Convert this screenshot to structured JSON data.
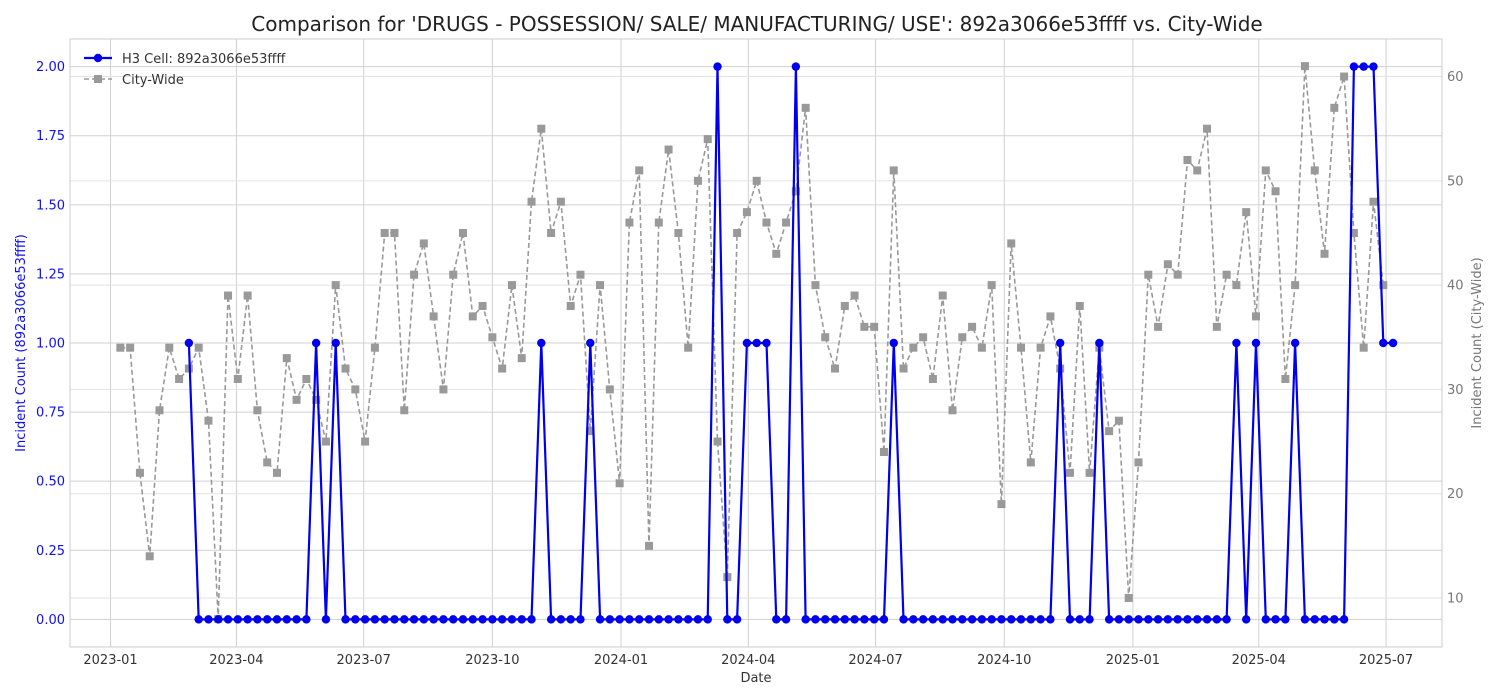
{
  "chart_data": {
    "type": "line",
    "title": "Comparison for 'DRUGS - POSSESSION/ SALE/ MANUFACTURING/ USE': 892a3066e53ffff vs. City-Wide",
    "xlabel": "Date",
    "ylabel_left": "Incident Count (892a3066e53ffff)",
    "ylabel_right": "Incident Count (City-Wide)",
    "ylim_left": [
      -0.1,
      2.1
    ],
    "ylim_right": [
      5.3,
      63.6
    ],
    "xlim": [
      "2022-12-03",
      "2025-08-10"
    ],
    "x_ticks": [
      "2023-01",
      "2023-04",
      "2023-07",
      "2023-10",
      "2024-01",
      "2024-04",
      "2024-07",
      "2024-10",
      "2025-01",
      "2025-04",
      "2025-07"
    ],
    "y_ticks_left": [
      "0.00",
      "0.25",
      "0.50",
      "0.75",
      "1.00",
      "1.25",
      "1.50",
      "1.75",
      "2.00"
    ],
    "y_ticks_right": [
      "10",
      "20",
      "30",
      "40",
      "50",
      "60"
    ],
    "grid": true,
    "legend_position": "top-left",
    "legend": [
      "H3 Cell: 892a3066e53ffff",
      "City-Wide"
    ],
    "series": [
      {
        "name": "H3 Cell: 892a3066e53ffff",
        "axis": "left",
        "color": "#0000ee",
        "points": [
          [
            "2023-02-26",
            1
          ],
          [
            "2023-03-05",
            0
          ],
          [
            "2023-03-12",
            0
          ],
          [
            "2023-03-19",
            0
          ],
          [
            "2023-03-26",
            0
          ],
          [
            "2023-04-02",
            0
          ],
          [
            "2023-04-09",
            0
          ],
          [
            "2023-04-16",
            0
          ],
          [
            "2023-04-23",
            0
          ],
          [
            "2023-04-30",
            0
          ],
          [
            "2023-05-07",
            0
          ],
          [
            "2023-05-14",
            0
          ],
          [
            "2023-05-21",
            0
          ],
          [
            "2023-05-28",
            1
          ],
          [
            "2023-06-04",
            0
          ],
          [
            "2023-06-11",
            1
          ],
          [
            "2023-06-18",
            0
          ],
          [
            "2023-06-25",
            0
          ],
          [
            "2023-07-02",
            0
          ],
          [
            "2023-07-09",
            0
          ],
          [
            "2023-07-16",
            0
          ],
          [
            "2023-07-23",
            0
          ],
          [
            "2023-07-30",
            0
          ],
          [
            "2023-08-06",
            0
          ],
          [
            "2023-08-13",
            0
          ],
          [
            "2023-08-20",
            0
          ],
          [
            "2023-08-27",
            0
          ],
          [
            "2023-09-03",
            0
          ],
          [
            "2023-09-10",
            0
          ],
          [
            "2023-09-17",
            0
          ],
          [
            "2023-09-24",
            0
          ],
          [
            "2023-10-01",
            0
          ],
          [
            "2023-10-08",
            0
          ],
          [
            "2023-10-15",
            0
          ],
          [
            "2023-10-22",
            0
          ],
          [
            "2023-10-29",
            0
          ],
          [
            "2023-11-05",
            1
          ],
          [
            "2023-11-12",
            0
          ],
          [
            "2023-11-19",
            0
          ],
          [
            "2023-11-26",
            0
          ],
          [
            "2023-12-03",
            0
          ],
          [
            "2023-12-10",
            1
          ],
          [
            "2023-12-17",
            0
          ],
          [
            "2023-12-24",
            0
          ],
          [
            "2023-12-31",
            0
          ],
          [
            "2024-01-07",
            0
          ],
          [
            "2024-01-14",
            0
          ],
          [
            "2024-01-21",
            0
          ],
          [
            "2024-01-28",
            0
          ],
          [
            "2024-02-04",
            0
          ],
          [
            "2024-02-11",
            0
          ],
          [
            "2024-02-18",
            0
          ],
          [
            "2024-02-25",
            0
          ],
          [
            "2024-03-03",
            0
          ],
          [
            "2024-03-10",
            2
          ],
          [
            "2024-03-17",
            0
          ],
          [
            "2024-03-24",
            0
          ],
          [
            "2024-03-31",
            1
          ],
          [
            "2024-04-07",
            1
          ],
          [
            "2024-04-14",
            1
          ],
          [
            "2024-04-21",
            0
          ],
          [
            "2024-04-28",
            0
          ],
          [
            "2024-05-05",
            2
          ],
          [
            "2024-05-12",
            0
          ],
          [
            "2024-05-19",
            0
          ],
          [
            "2024-05-26",
            0
          ],
          [
            "2024-06-02",
            0
          ],
          [
            "2024-06-09",
            0
          ],
          [
            "2024-06-16",
            0
          ],
          [
            "2024-06-23",
            0
          ],
          [
            "2024-06-30",
            0
          ],
          [
            "2024-07-07",
            0
          ],
          [
            "2024-07-14",
            1
          ],
          [
            "2024-07-21",
            0
          ],
          [
            "2024-07-28",
            0
          ],
          [
            "2024-08-04",
            0
          ],
          [
            "2024-08-11",
            0
          ],
          [
            "2024-08-18",
            0
          ],
          [
            "2024-08-25",
            0
          ],
          [
            "2024-09-01",
            0
          ],
          [
            "2024-09-08",
            0
          ],
          [
            "2024-09-15",
            0
          ],
          [
            "2024-09-22",
            0
          ],
          [
            "2024-09-29",
            0
          ],
          [
            "2024-10-06",
            0
          ],
          [
            "2024-10-13",
            0
          ],
          [
            "2024-10-20",
            0
          ],
          [
            "2024-10-27",
            0
          ],
          [
            "2024-11-03",
            0
          ],
          [
            "2024-11-10",
            1
          ],
          [
            "2024-11-17",
            0
          ],
          [
            "2024-11-24",
            0
          ],
          [
            "2024-12-01",
            0
          ],
          [
            "2024-12-08",
            1
          ],
          [
            "2024-12-15",
            0
          ],
          [
            "2024-12-22",
            0
          ],
          [
            "2024-12-29",
            0
          ],
          [
            "2025-01-05",
            0
          ],
          [
            "2025-01-12",
            0
          ],
          [
            "2025-01-19",
            0
          ],
          [
            "2025-01-26",
            0
          ],
          [
            "2025-02-02",
            0
          ],
          [
            "2025-02-09",
            0
          ],
          [
            "2025-02-16",
            0
          ],
          [
            "2025-02-23",
            0
          ],
          [
            "2025-03-02",
            0
          ],
          [
            "2025-03-09",
            0
          ],
          [
            "2025-03-16",
            1
          ],
          [
            "2025-03-23",
            0
          ],
          [
            "2025-03-30",
            1
          ],
          [
            "2025-04-06",
            0
          ],
          [
            "2025-04-13",
            0
          ],
          [
            "2025-04-20",
            0
          ],
          [
            "2025-04-27",
            1
          ],
          [
            "2025-05-04",
            0
          ],
          [
            "2025-05-11",
            0
          ],
          [
            "2025-05-18",
            0
          ],
          [
            "2025-05-25",
            0
          ],
          [
            "2025-06-01",
            0
          ],
          [
            "2025-06-08",
            2
          ],
          [
            "2025-06-15",
            2
          ],
          [
            "2025-06-22",
            2
          ],
          [
            "2025-06-29",
            1
          ],
          [
            "2025-07-06",
            1
          ]
        ]
      },
      {
        "name": "City-Wide",
        "axis": "right",
        "color": "#999999",
        "points": [
          [
            "2023-01-08",
            34
          ],
          [
            "2023-01-15",
            34
          ],
          [
            "2023-01-22",
            22
          ],
          [
            "2023-01-29",
            14
          ],
          [
            "2023-02-05",
            28
          ],
          [
            "2023-02-12",
            34
          ],
          [
            "2023-02-19",
            31
          ],
          [
            "2023-02-26",
            32
          ],
          [
            "2023-03-05",
            34
          ],
          [
            "2023-03-12",
            27
          ],
          [
            "2023-03-19",
            8
          ],
          [
            "2023-03-26",
            39
          ],
          [
            "2023-04-02",
            31
          ],
          [
            "2023-04-09",
            39
          ],
          [
            "2023-04-16",
            28
          ],
          [
            "2023-04-23",
            23
          ],
          [
            "2023-04-30",
            22
          ],
          [
            "2023-05-07",
            33
          ],
          [
            "2023-05-14",
            29
          ],
          [
            "2023-05-21",
            31
          ],
          [
            "2023-05-28",
            29
          ],
          [
            "2023-06-04",
            25
          ],
          [
            "2023-06-11",
            40
          ],
          [
            "2023-06-18",
            32
          ],
          [
            "2023-06-25",
            30
          ],
          [
            "2023-07-02",
            25
          ],
          [
            "2023-07-09",
            34
          ],
          [
            "2023-07-16",
            45
          ],
          [
            "2023-07-23",
            45
          ],
          [
            "2023-07-30",
            28
          ],
          [
            "2023-08-06",
            41
          ],
          [
            "2023-08-13",
            44
          ],
          [
            "2023-08-20",
            37
          ],
          [
            "2023-08-27",
            30
          ],
          [
            "2023-09-03",
            41
          ],
          [
            "2023-09-10",
            45
          ],
          [
            "2023-09-17",
            37
          ],
          [
            "2023-09-24",
            38
          ],
          [
            "2023-10-01",
            35
          ],
          [
            "2023-10-08",
            32
          ],
          [
            "2023-10-15",
            40
          ],
          [
            "2023-10-22",
            33
          ],
          [
            "2023-10-29",
            48
          ],
          [
            "2023-11-05",
            55
          ],
          [
            "2023-11-12",
            45
          ],
          [
            "2023-11-19",
            48
          ],
          [
            "2023-11-26",
            38
          ],
          [
            "2023-12-03",
            41
          ],
          [
            "2023-12-10",
            26
          ],
          [
            "2023-12-17",
            40
          ],
          [
            "2023-12-24",
            30
          ],
          [
            "2023-12-31",
            21
          ],
          [
            "2024-01-07",
            46
          ],
          [
            "2024-01-14",
            51
          ],
          [
            "2024-01-21",
            15
          ],
          [
            "2024-01-28",
            46
          ],
          [
            "2024-02-04",
            53
          ],
          [
            "2024-02-11",
            45
          ],
          [
            "2024-02-18",
            34
          ],
          [
            "2024-02-25",
            50
          ],
          [
            "2024-03-03",
            54
          ],
          [
            "2024-03-10",
            25
          ],
          [
            "2024-03-17",
            12
          ],
          [
            "2024-03-24",
            45
          ],
          [
            "2024-03-31",
            47
          ],
          [
            "2024-04-07",
            50
          ],
          [
            "2024-04-14",
            46
          ],
          [
            "2024-04-21",
            43
          ],
          [
            "2024-04-28",
            46
          ],
          [
            "2024-05-05",
            49
          ],
          [
            "2024-05-12",
            57
          ],
          [
            "2024-05-19",
            40
          ],
          [
            "2024-05-26",
            35
          ],
          [
            "2024-06-02",
            32
          ],
          [
            "2024-06-09",
            38
          ],
          [
            "2024-06-16",
            39
          ],
          [
            "2024-06-23",
            36
          ],
          [
            "2024-06-30",
            36
          ],
          [
            "2024-07-07",
            24
          ],
          [
            "2024-07-14",
            51
          ],
          [
            "2024-07-21",
            32
          ],
          [
            "2024-07-28",
            34
          ],
          [
            "2024-08-04",
            35
          ],
          [
            "2024-08-11",
            31
          ],
          [
            "2024-08-18",
            39
          ],
          [
            "2024-08-25",
            28
          ],
          [
            "2024-09-01",
            35
          ],
          [
            "2024-09-08",
            36
          ],
          [
            "2024-09-15",
            34
          ],
          [
            "2024-09-22",
            40
          ],
          [
            "2024-09-29",
            19
          ],
          [
            "2024-10-06",
            44
          ],
          [
            "2024-10-13",
            34
          ],
          [
            "2024-10-20",
            23
          ],
          [
            "2024-10-27",
            34
          ],
          [
            "2024-11-03",
            37
          ],
          [
            "2024-11-10",
            32
          ],
          [
            "2024-11-17",
            22
          ],
          [
            "2024-11-24",
            38
          ],
          [
            "2024-12-01",
            22
          ],
          [
            "2024-12-08",
            34
          ],
          [
            "2024-12-15",
            26
          ],
          [
            "2024-12-22",
            27
          ],
          [
            "2024-12-29",
            10
          ],
          [
            "2025-01-05",
            23
          ],
          [
            "2025-01-12",
            41
          ],
          [
            "2025-01-19",
            36
          ],
          [
            "2025-01-26",
            42
          ],
          [
            "2025-02-02",
            41
          ],
          [
            "2025-02-09",
            52
          ],
          [
            "2025-02-16",
            51
          ],
          [
            "2025-02-23",
            55
          ],
          [
            "2025-03-02",
            36
          ],
          [
            "2025-03-09",
            41
          ],
          [
            "2025-03-16",
            40
          ],
          [
            "2025-03-23",
            47
          ],
          [
            "2025-03-30",
            37
          ],
          [
            "2025-04-06",
            51
          ],
          [
            "2025-04-13",
            49
          ],
          [
            "2025-04-20",
            31
          ],
          [
            "2025-04-27",
            40
          ],
          [
            "2025-05-04",
            61
          ],
          [
            "2025-05-11",
            51
          ],
          [
            "2025-05-18",
            43
          ],
          [
            "2025-05-25",
            57
          ],
          [
            "2025-06-01",
            60
          ],
          [
            "2025-06-08",
            45
          ],
          [
            "2025-06-15",
            34
          ],
          [
            "2025-06-22",
            48
          ],
          [
            "2025-06-29",
            40
          ]
        ]
      }
    ]
  }
}
